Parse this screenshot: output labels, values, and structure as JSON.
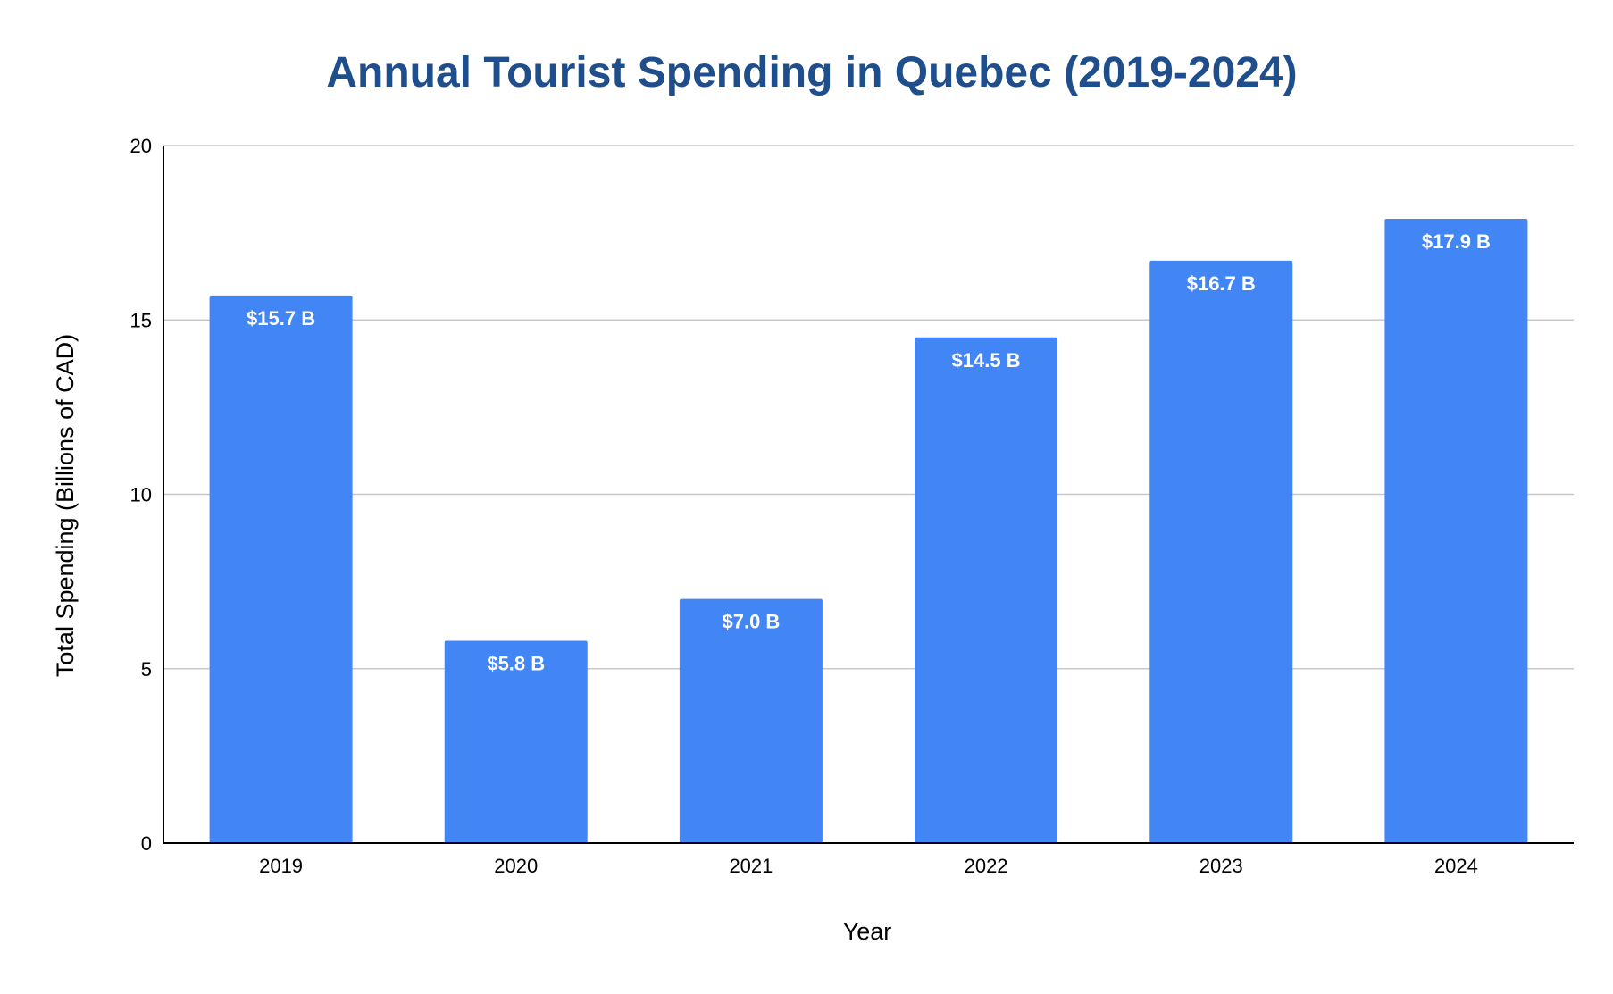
{
  "chart_data": {
    "type": "bar",
    "title": "Annual Tourist Spending in Quebec (2019-2024)",
    "xlabel": "Year",
    "ylabel": "Total Spending (Billions of CAD)",
    "categories": [
      "2019",
      "2020",
      "2021",
      "2022",
      "2023",
      "2024"
    ],
    "values": [
      15.7,
      5.8,
      7.0,
      14.5,
      16.7,
      17.9
    ],
    "data_labels": [
      "$15.7 B",
      "$5.8 B",
      "$7.0 B",
      "$14.5 B",
      "$16.7 B",
      "$17.9 B"
    ],
    "ylim": [
      0,
      20
    ],
    "yticks": [
      0,
      5,
      10,
      15,
      20
    ],
    "grid": true,
    "legend": "none"
  },
  "colors": {
    "bar": "#4285f4",
    "title": "#1f4e8c",
    "data_label": "#ffffff",
    "grid": "#c8c8c8",
    "axis": "#000000"
  }
}
